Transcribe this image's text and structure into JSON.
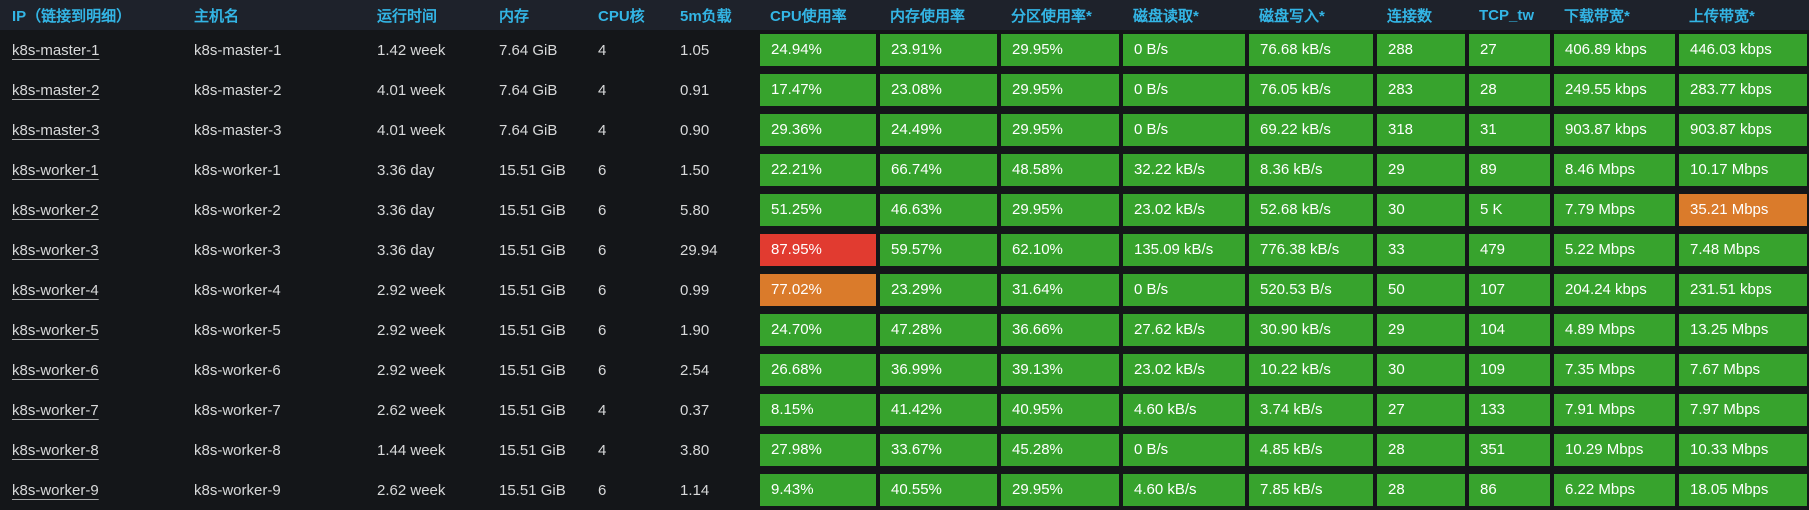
{
  "colors": {
    "green": "#37a32d",
    "orange": "#da7b2b",
    "red": "#e13b30",
    "header_text": "#33b5e5",
    "body_text": "#d8d9da",
    "header_bg": "#1e222b",
    "page_bg": "#141619"
  },
  "table": {
    "columns": [
      {
        "id": "ip",
        "label": "IP（链接到明细）",
        "type": "link"
      },
      {
        "id": "hostname",
        "label": "主机名"
      },
      {
        "id": "uptime",
        "label": "运行时间"
      },
      {
        "id": "memory",
        "label": "内存"
      },
      {
        "id": "cpu-cores",
        "label": "CPU核"
      },
      {
        "id": "load-5m",
        "label": "5m负载"
      },
      {
        "id": "cpu-usage",
        "label": "CPU使用率",
        "colored": true
      },
      {
        "id": "mem-usage",
        "label": "内存使用率",
        "colored": true
      },
      {
        "id": "partition-usage",
        "label": "分区使用率*",
        "colored": true
      },
      {
        "id": "disk-read",
        "label": "磁盘读取*",
        "colored": true
      },
      {
        "id": "disk-write",
        "label": "磁盘写入*",
        "colored": true
      },
      {
        "id": "connections",
        "label": "连接数",
        "colored": true
      },
      {
        "id": "tcp-tw",
        "label": "TCP_tw",
        "colored": true
      },
      {
        "id": "download-bw",
        "label": "下载带宽*",
        "colored": true
      },
      {
        "id": "upload-bw",
        "label": "上传带宽*",
        "colored": true
      }
    ],
    "rows": [
      {
        "values": [
          "k8s-master-1",
          "k8s-master-1",
          "1.42 week",
          "7.64 GiB",
          "4",
          "1.05",
          "24.94%",
          "23.91%",
          "29.95%",
          "0 B/s",
          "76.68 kB/s",
          "288",
          "27",
          "406.89 kbps",
          "446.03 kbps"
        ],
        "cell_colors": [
          "green",
          "green",
          "green",
          "green",
          "green",
          "green",
          "green",
          "green",
          "green"
        ]
      },
      {
        "values": [
          "k8s-master-2",
          "k8s-master-2",
          "4.01 week",
          "7.64 GiB",
          "4",
          "0.91",
          "17.47%",
          "23.08%",
          "29.95%",
          "0 B/s",
          "76.05 kB/s",
          "283",
          "28",
          "249.55 kbps",
          "283.77 kbps"
        ],
        "cell_colors": [
          "green",
          "green",
          "green",
          "green",
          "green",
          "green",
          "green",
          "green",
          "green"
        ]
      },
      {
        "values": [
          "k8s-master-3",
          "k8s-master-3",
          "4.01 week",
          "7.64 GiB",
          "4",
          "0.90",
          "29.36%",
          "24.49%",
          "29.95%",
          "0 B/s",
          "69.22 kB/s",
          "318",
          "31",
          "903.87 kbps",
          "903.87 kbps"
        ],
        "cell_colors": [
          "green",
          "green",
          "green",
          "green",
          "green",
          "green",
          "green",
          "green",
          "green"
        ]
      },
      {
        "values": [
          "k8s-worker-1",
          "k8s-worker-1",
          "3.36 day",
          "15.51 GiB",
          "6",
          "1.50",
          "22.21%",
          "66.74%",
          "48.58%",
          "32.22 kB/s",
          "8.36 kB/s",
          "29",
          "89",
          "8.46 Mbps",
          "10.17 Mbps"
        ],
        "cell_colors": [
          "green",
          "green",
          "green",
          "green",
          "green",
          "green",
          "green",
          "green",
          "green"
        ]
      },
      {
        "values": [
          "k8s-worker-2",
          "k8s-worker-2",
          "3.36 day",
          "15.51 GiB",
          "6",
          "5.80",
          "51.25%",
          "46.63%",
          "29.95%",
          "23.02 kB/s",
          "52.68 kB/s",
          "30",
          "5 K",
          "7.79 Mbps",
          "35.21 Mbps"
        ],
        "cell_colors": [
          "green",
          "green",
          "green",
          "green",
          "green",
          "green",
          "green",
          "green",
          "orange"
        ]
      },
      {
        "values": [
          "k8s-worker-3",
          "k8s-worker-3",
          "3.36 day",
          "15.51 GiB",
          "6",
          "29.94",
          "87.95%",
          "59.57%",
          "62.10%",
          "135.09 kB/s",
          "776.38 kB/s",
          "33",
          "479",
          "5.22 Mbps",
          "7.48 Mbps"
        ],
        "cell_colors": [
          "red",
          "green",
          "green",
          "green",
          "green",
          "green",
          "green",
          "green",
          "green"
        ]
      },
      {
        "values": [
          "k8s-worker-4",
          "k8s-worker-4",
          "2.92 week",
          "15.51 GiB",
          "6",
          "0.99",
          "77.02%",
          "23.29%",
          "31.64%",
          "0 B/s",
          "520.53 B/s",
          "50",
          "107",
          "204.24 kbps",
          "231.51 kbps"
        ],
        "cell_colors": [
          "orange",
          "green",
          "green",
          "green",
          "green",
          "green",
          "green",
          "green",
          "green"
        ]
      },
      {
        "values": [
          "k8s-worker-5",
          "k8s-worker-5",
          "2.92 week",
          "15.51 GiB",
          "6",
          "1.90",
          "24.70%",
          "47.28%",
          "36.66%",
          "27.62 kB/s",
          "30.90 kB/s",
          "29",
          "104",
          "4.89 Mbps",
          "13.25 Mbps"
        ],
        "cell_colors": [
          "green",
          "green",
          "green",
          "green",
          "green",
          "green",
          "green",
          "green",
          "green"
        ]
      },
      {
        "values": [
          "k8s-worker-6",
          "k8s-worker-6",
          "2.92 week",
          "15.51 GiB",
          "6",
          "2.54",
          "26.68%",
          "36.99%",
          "39.13%",
          "23.02 kB/s",
          "10.22 kB/s",
          "30",
          "109",
          "7.35 Mbps",
          "7.67 Mbps"
        ],
        "cell_colors": [
          "green",
          "green",
          "green",
          "green",
          "green",
          "green",
          "green",
          "green",
          "green"
        ]
      },
      {
        "values": [
          "k8s-worker-7",
          "k8s-worker-7",
          "2.62 week",
          "15.51 GiB",
          "4",
          "0.37",
          "8.15%",
          "41.42%",
          "40.95%",
          "4.60 kB/s",
          "3.74 kB/s",
          "27",
          "133",
          "7.91 Mbps",
          "7.97 Mbps"
        ],
        "cell_colors": [
          "green",
          "green",
          "green",
          "green",
          "green",
          "green",
          "green",
          "green",
          "green"
        ]
      },
      {
        "values": [
          "k8s-worker-8",
          "k8s-worker-8",
          "1.44 week",
          "15.51 GiB",
          "4",
          "3.80",
          "27.98%",
          "33.67%",
          "45.28%",
          "0 B/s",
          "4.85 kB/s",
          "28",
          "351",
          "10.29 Mbps",
          "10.33 Mbps"
        ],
        "cell_colors": [
          "green",
          "green",
          "green",
          "green",
          "green",
          "green",
          "green",
          "green",
          "green"
        ]
      },
      {
        "values": [
          "k8s-worker-9",
          "k8s-worker-9",
          "2.62 week",
          "15.51 GiB",
          "6",
          "1.14",
          "9.43%",
          "40.55%",
          "29.95%",
          "4.60 kB/s",
          "7.85 kB/s",
          "28",
          "86",
          "6.22 Mbps",
          "18.05 Mbps"
        ],
        "cell_colors": [
          "green",
          "green",
          "green",
          "green",
          "green",
          "green",
          "green",
          "green",
          "green"
        ]
      }
    ]
  }
}
